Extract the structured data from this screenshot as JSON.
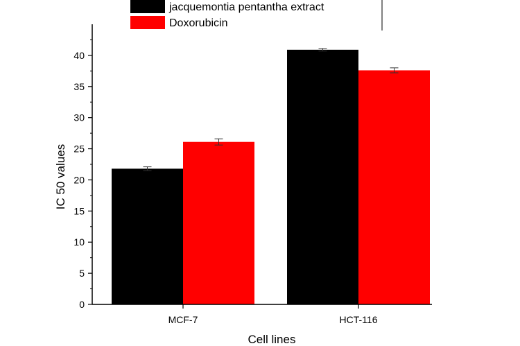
{
  "chart_data": {
    "type": "bar",
    "xlabel": "Cell lines",
    "ylabel": "IC 50 values",
    "categories": [
      "MCF-7",
      "HCT-116"
    ],
    "ylim": [
      0,
      45
    ],
    "yticks": [
      0,
      5,
      10,
      15,
      20,
      25,
      30,
      35,
      40
    ],
    "grid": false,
    "legend_position": "top",
    "series": [
      {
        "name": "jacquemontia pentantha extract",
        "color": "#000000",
        "values": [
          21.8,
          40.9
        ],
        "errors": [
          0.3,
          0.2
        ]
      },
      {
        "name": "Doxorubicin",
        "color": "#ff0000",
        "values": [
          26.1,
          37.6
        ],
        "errors": [
          0.5,
          0.4
        ]
      }
    ]
  }
}
